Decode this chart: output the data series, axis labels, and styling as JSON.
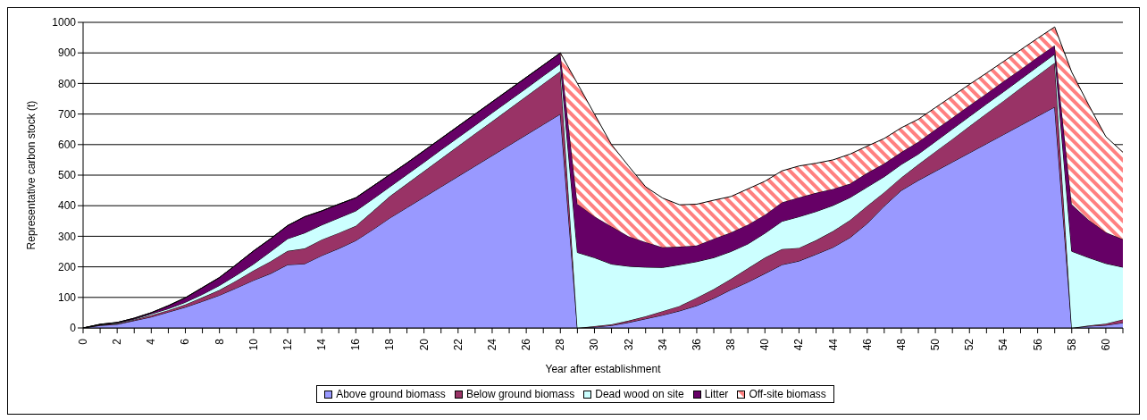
{
  "chart_data": {
    "type": "area",
    "stacked": true,
    "xlabel": "Year after establishment",
    "ylabel": "Representative carbon stock (t)",
    "categories": [
      "0",
      null,
      "2",
      null,
      "4",
      null,
      "6",
      null,
      "8",
      null,
      "10",
      null,
      "12",
      null,
      "14",
      null,
      "16",
      null,
      "18",
      null,
      "20",
      null,
      "22",
      null,
      "24",
      null,
      "26",
      null,
      "28",
      null,
      "30",
      null,
      "32",
      null,
      "34",
      null,
      "36",
      null,
      "38",
      null,
      "40",
      null,
      "42",
      null,
      "44",
      null,
      "46",
      null,
      "48",
      null,
      "50",
      null,
      "52",
      null,
      "54",
      null,
      "56",
      null,
      "58",
      null,
      "60",
      null
    ],
    "ylim": [
      0,
      1000
    ],
    "yticks": [
      0,
      100,
      200,
      300,
      400,
      500,
      600,
      700,
      800,
      900,
      1000
    ],
    "grid": "y",
    "legend": "bottom",
    "series": [
      {
        "name": "Above ground biomass",
        "color": "#9999ff",
        "values": [
          0,
          8,
          12,
          24,
          36,
          52,
          68,
          87,
          107,
          131,
          156,
          178,
          207,
          210,
          237,
          260,
          286,
          322,
          360,
          394,
          428,
          462,
          496,
          530,
          564,
          598,
          632,
          666,
          700,
          0,
          3,
          8,
          18,
          30,
          42,
          56,
          73,
          97,
          125,
          150,
          178,
          207,
          219,
          241,
          264,
          296,
          342,
          399,
          450,
          483,
          513,
          543,
          573,
          603,
          633,
          663,
          693,
          723,
          0,
          6,
          9,
          17
        ]
      },
      {
        "name": "Below ground biomass",
        "color": "#993366",
        "values": [
          0,
          2,
          2,
          3,
          6,
          6,
          9,
          13,
          17,
          24,
          32,
          40,
          45,
          50,
          52,
          51,
          48,
          60,
          71,
          78,
          85,
          92,
          99,
          106,
          112,
          119,
          126,
          133,
          140,
          0,
          3,
          4,
          6,
          8,
          13,
          16,
          26,
          30,
          35,
          45,
          52,
          51,
          43,
          46,
          53,
          57,
          57,
          45,
          42,
          52,
          64,
          75,
          87,
          99,
          110,
          122,
          133,
          145,
          0,
          2,
          5,
          11
        ]
      },
      {
        "name": "Dead wood on site",
        "color": "#ccffff",
        "values": [
          0,
          1,
          2,
          2,
          4,
          5,
          7,
          10,
          15,
          18,
          21,
          32,
          40,
          51,
          48,
          49,
          49,
          40,
          31,
          30,
          29,
          29,
          28,
          27,
          28,
          27,
          26,
          26,
          25,
          247,
          224,
          197,
          178,
          161,
          143,
          135,
          118,
          103,
          90,
          80,
          80,
          91,
          102,
          94,
          84,
          74,
          62,
          51,
          43,
          34,
          33,
          33,
          32,
          31,
          30,
          29,
          29,
          28,
          251,
          222,
          197,
          171
        ]
      },
      {
        "name": "Litter",
        "color": "#660066",
        "values": [
          0,
          1,
          2,
          3,
          4,
          10,
          15,
          22,
          26,
          35,
          43,
          42,
          43,
          53,
          46,
          45,
          43,
          42,
          40,
          38,
          38,
          37,
          37,
          37,
          36,
          36,
          36,
          35,
          35,
          159,
          135,
          123,
          98,
          82,
          66,
          59,
          53,
          62,
          62,
          63,
          60,
          62,
          63,
          61,
          54,
          45,
          46,
          43,
          40,
          40,
          39,
          37,
          36,
          34,
          34,
          32,
          31,
          29,
          153,
          123,
          102,
          91
        ]
      },
      {
        "name": "Off-site biomass",
        "color": "#ff8080",
        "values": [
          0,
          0,
          0,
          0,
          0,
          0,
          0,
          0,
          0,
          0,
          0,
          0,
          0,
          0,
          0,
          0,
          0,
          0,
          0,
          0,
          0,
          0,
          0,
          0,
          0,
          0,
          0,
          0,
          0,
          394,
          335,
          268,
          230,
          181,
          161,
          137,
          135,
          126,
          118,
          117,
          110,
          103,
          103,
          97,
          95,
          97,
          88,
          82,
          80,
          74,
          72,
          71,
          69,
          67,
          65,
          64,
          62,
          60,
          433,
          376,
          313,
          285
        ]
      }
    ]
  }
}
